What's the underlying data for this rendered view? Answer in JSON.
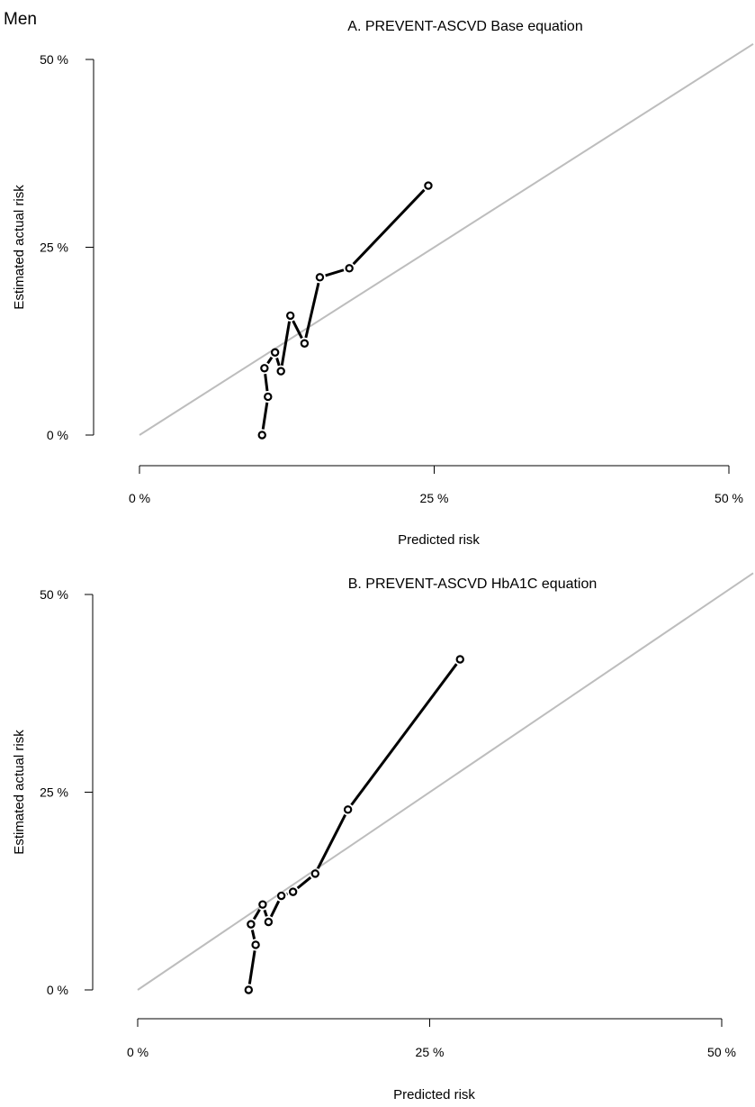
{
  "figure": {
    "group_label": "Men"
  },
  "chart_data": [
    {
      "type": "line",
      "title": "A. PREVENT-ASCVD Base equation",
      "xlabel": "Predicted risk",
      "ylabel": "Estimated actual risk",
      "xlim": [
        0,
        50
      ],
      "ylim": [
        0,
        50
      ],
      "xticks": [
        0,
        25,
        50
      ],
      "yticks": [
        0,
        25,
        50
      ],
      "xtick_labels": [
        "0 %",
        "25 %",
        "50 %"
      ],
      "ytick_labels": [
        "0 %",
        "25 %",
        "50 %"
      ],
      "grid": false,
      "reference_line": {
        "from": [
          0,
          0
        ],
        "to": [
          50,
          50
        ],
        "color": "#bdbdbd"
      },
      "series": [
        {
          "color": "#000000",
          "points": [
            {
              "x": 10.4,
              "y": 0.0
            },
            {
              "x": 10.9,
              "y": 5.1
            },
            {
              "x": 10.6,
              "y": 8.9
            },
            {
              "x": 11.5,
              "y": 11.0
            },
            {
              "x": 12.0,
              "y": 8.5
            },
            {
              "x": 12.8,
              "y": 15.9
            },
            {
              "x": 14.0,
              "y": 12.2
            },
            {
              "x": 15.3,
              "y": 21.0
            },
            {
              "x": 17.8,
              "y": 22.2
            },
            {
              "x": 24.5,
              "y": 33.2
            }
          ]
        }
      ]
    },
    {
      "type": "line",
      "title": "B. PREVENT-ASCVD HbA1C equation",
      "xlabel": "Predicted risk",
      "ylabel": "Estimated actual risk",
      "xlim": [
        0,
        50
      ],
      "ylim": [
        0,
        50
      ],
      "xticks": [
        0,
        25,
        50
      ],
      "yticks": [
        0,
        25,
        50
      ],
      "xtick_labels": [
        "0 %",
        "25 %",
        "50 %"
      ],
      "ytick_labels": [
        "0 %",
        "25 %",
        "50 %"
      ],
      "grid": false,
      "reference_line": {
        "from": [
          0,
          0
        ],
        "to": [
          50,
          50
        ],
        "color": "#bdbdbd"
      },
      "series": [
        {
          "color": "#000000",
          "points": [
            {
              "x": 9.5,
              "y": 0.0
            },
            {
              "x": 10.1,
              "y": 5.7
            },
            {
              "x": 9.7,
              "y": 8.3
            },
            {
              "x": 10.7,
              "y": 10.8
            },
            {
              "x": 11.2,
              "y": 8.6
            },
            {
              "x": 12.3,
              "y": 11.9
            },
            {
              "x": 13.3,
              "y": 12.4
            },
            {
              "x": 15.2,
              "y": 14.7
            },
            {
              "x": 18.0,
              "y": 22.8
            },
            {
              "x": 27.6,
              "y": 41.8
            }
          ]
        }
      ]
    }
  ]
}
